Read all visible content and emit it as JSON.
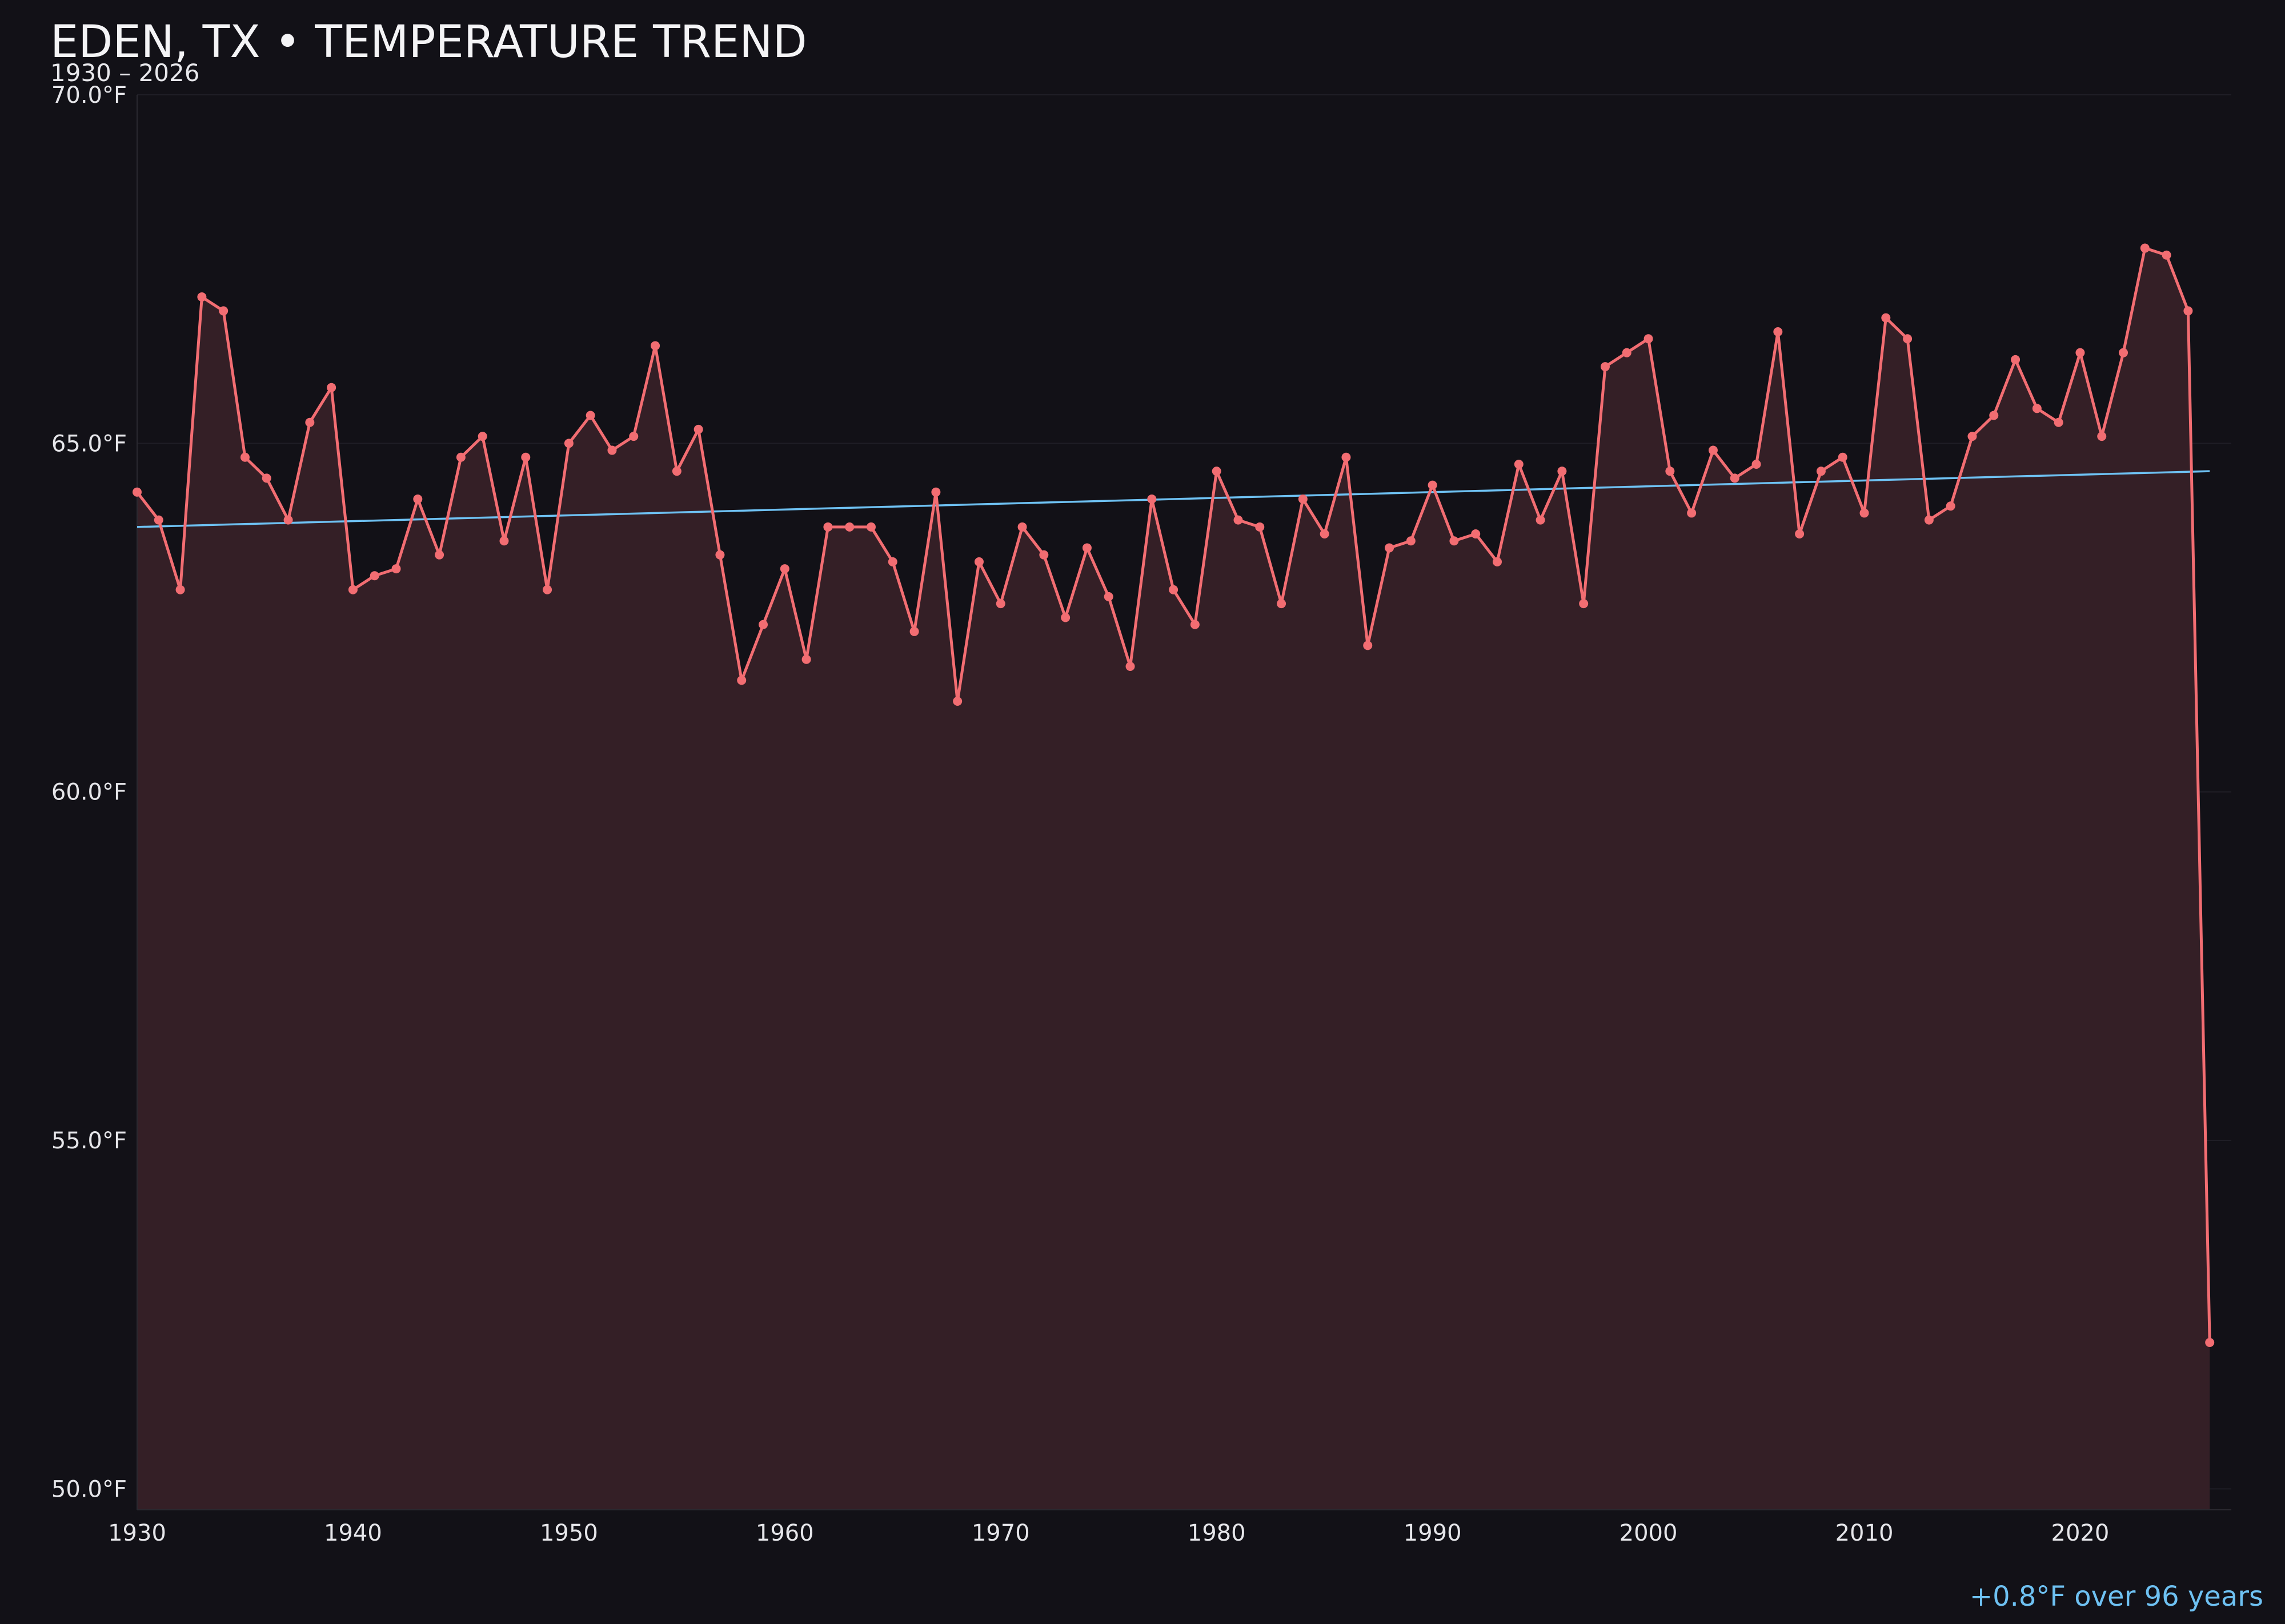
{
  "header": {
    "title": "EDEN, TX • TEMPERATURE TREND",
    "subtitle": "1930 – 2026"
  },
  "annotation": {
    "trend_text": "+0.8°F over 96 years"
  },
  "colors": {
    "background": "#121117",
    "series_line": "#f26d72",
    "series_fill": "#341f26",
    "trend_line": "#6ec1f2",
    "annotation": "#6ec1f2",
    "grid": "#1f1e26"
  },
  "chart_data": {
    "type": "line",
    "title": "EDEN, TX • TEMPERATURE TREND",
    "subtitle": "1930 – 2026",
    "xlabel": "",
    "ylabel": "",
    "xlim": [
      1930,
      2027
    ],
    "ylim": [
      49.7,
      70.0
    ],
    "x_ticks": [
      1930,
      1940,
      1950,
      1960,
      1970,
      1980,
      1990,
      2000,
      2010,
      2020
    ],
    "x_tick_labels": [
      "1930",
      "1940",
      "1950",
      "1960",
      "1970",
      "1980",
      "1990",
      "2000",
      "2010",
      "2020"
    ],
    "y_ticks": [
      50,
      55,
      60,
      65,
      70
    ],
    "y_tick_labels": [
      "50.0°F",
      "55.0°F",
      "60.0°F",
      "65.0°F",
      "70.0°F"
    ],
    "grid": "horizontal",
    "fill_under_line": true,
    "series": [
      {
        "x": [
          1930,
          1931,
          1932,
          1933,
          1934,
          1935,
          1936,
          1937,
          1938,
          1939,
          1940,
          1941,
          1942,
          1943,
          1944,
          1945,
          1946,
          1947,
          1948,
          1949,
          1950,
          1951,
          1952,
          1953,
          1954,
          1955,
          1956,
          1957,
          1958,
          1959,
          1960,
          1961,
          1962,
          1963,
          1964,
          1965,
          1966,
          1967,
          1968,
          1969,
          1970,
          1971,
          1972,
          1973,
          1974,
          1975,
          1976,
          1977,
          1978,
          1979,
          1980,
          1981,
          1982,
          1983,
          1984,
          1985,
          1986,
          1987,
          1988,
          1989,
          1990,
          1991,
          1992,
          1993,
          1994,
          1995,
          1996,
          1997,
          1998,
          1999,
          2000,
          2001,
          2002,
          2003,
          2004,
          2005,
          2006,
          2007,
          2008,
          2009,
          2010,
          2011,
          2012,
          2013,
          2014,
          2015,
          2016,
          2017,
          2018,
          2019,
          2020,
          2021,
          2022,
          2023,
          2024,
          2025,
          2026
        ],
        "values": [
          64.3,
          63.9,
          62.9,
          67.1,
          66.9,
          64.8,
          64.5,
          63.9,
          65.3,
          65.8,
          62.9,
          63.1,
          63.2,
          64.2,
          63.4,
          64.8,
          65.1,
          63.6,
          64.8,
          62.9,
          65.0,
          65.4,
          64.9,
          65.1,
          66.4,
          64.6,
          65.2,
          63.4,
          61.6,
          62.4,
          63.2,
          61.9,
          63.8,
          63.8,
          63.8,
          63.3,
          62.3,
          64.3,
          61.3,
          63.3,
          62.7,
          63.8,
          63.4,
          62.5,
          63.5,
          62.8,
          61.8,
          64.2,
          62.9,
          62.4,
          64.6,
          63.9,
          63.8,
          62.7,
          64.2,
          63.7,
          64.8,
          62.1,
          63.5,
          63.6,
          64.4,
          63.6,
          63.7,
          63.3,
          64.7,
          63.9,
          64.6,
          62.7,
          66.1,
          66.3,
          66.5,
          64.6,
          64.0,
          64.9,
          64.5,
          64.7,
          66.6,
          63.7,
          64.6,
          64.8,
          64.0,
          66.8,
          66.5,
          63.9,
          64.1,
          65.1,
          65.4,
          66.2,
          65.5,
          65.3,
          66.3,
          65.1,
          66.3,
          67.8,
          67.7,
          66.9,
          52.1
        ]
      }
    ],
    "trend": {
      "x": [
        1930,
        2026
      ],
      "values": [
        63.8,
        64.6
      ]
    }
  }
}
